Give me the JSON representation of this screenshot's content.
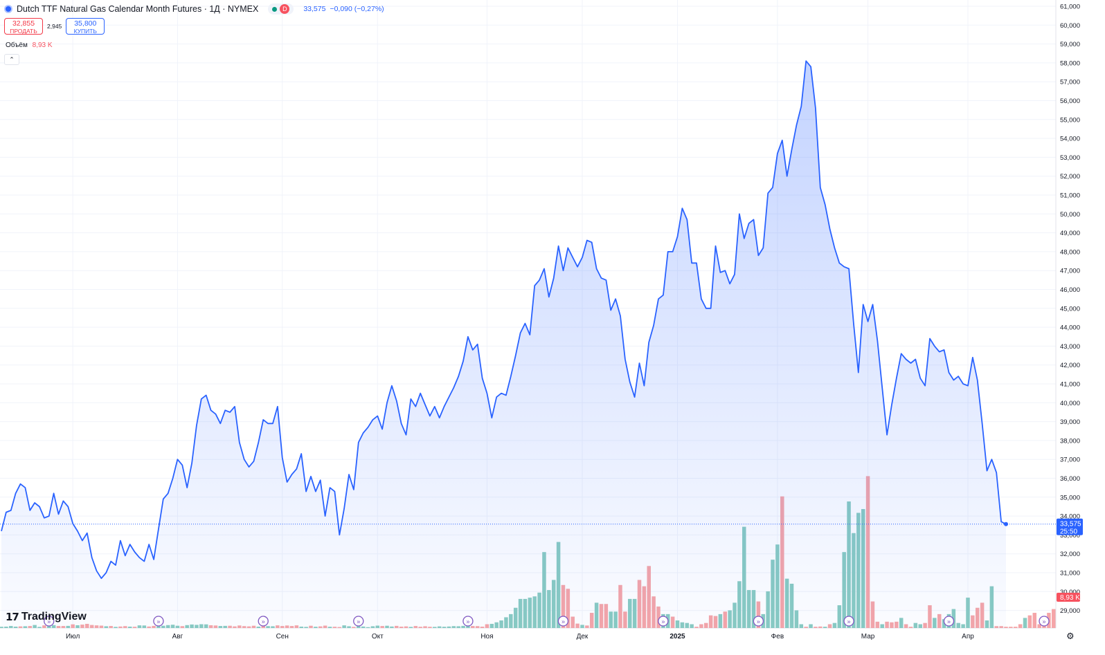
{
  "header": {
    "title": "Dutch TTF Natural Gas Calendar Month Futures · 1Д · NYMEX",
    "market_badge": "D",
    "last": "33,575",
    "change": "−0,090 (−0,27%)"
  },
  "trade": {
    "sell_price": "32,855",
    "sell_label": "ПРОДАТЬ",
    "spread": "2,945",
    "buy_price": "35,800",
    "buy_label": "КУПИТЬ"
  },
  "volume": {
    "label": "Объём",
    "value": "8,93 K"
  },
  "logo_text": "TradingView",
  "price_label": "33,575",
  "countdown": "25:50",
  "volume_label": "8,93 K",
  "colors": {
    "line": "#2962ff",
    "up_volume": "#89cbc2",
    "down_volume": "#f5a5a8",
    "accent": "#2962ff"
  },
  "icons": [
    "symbol-icon",
    "settings-icon",
    "collapse-icon",
    "event-icon"
  ],
  "chart_data": {
    "type": "area",
    "ylim": [
      28500,
      61200
    ],
    "y_ticks": [
      "29,000",
      "30,000",
      "31,000",
      "32,000",
      "33,000",
      "34,000",
      "35,000",
      "36,000",
      "37,000",
      "38,000",
      "39,000",
      "40,000",
      "41,000",
      "42,000",
      "43,000",
      "44,000",
      "45,000",
      "46,000",
      "47,000",
      "48,000",
      "49,000",
      "50,000",
      "51,000",
      "52,000",
      "53,000",
      "54,000",
      "55,000",
      "56,000",
      "57,000",
      "58,000",
      "59,000",
      "60,000",
      "61,000"
    ],
    "x_ticks": [
      {
        "label": "Июл",
        "i": 15
      },
      {
        "label": "Авг",
        "i": 37
      },
      {
        "label": "Сен",
        "i": 59
      },
      {
        "label": "Окт",
        "i": 79
      },
      {
        "label": "Ноя",
        "i": 102
      },
      {
        "label": "Дек",
        "i": 122
      },
      {
        "label": "2025",
        "i": 142
      },
      {
        "label": "Фев",
        "i": 163
      },
      {
        "label": "Мар",
        "i": 182
      },
      {
        "label": "Апр",
        "i": 203
      }
    ],
    "events_i": [
      10,
      33,
      55,
      75,
      98,
      118,
      139,
      159,
      178,
      199,
      219
    ],
    "series": [
      {
        "values": [
          33200,
          34200,
          34300,
          35200,
          35700,
          35500,
          34300,
          34700,
          34500,
          33900,
          34000,
          35200,
          34100,
          34800,
          34500,
          33600,
          33200,
          32700,
          33100,
          31800,
          31100,
          30700,
          31000,
          31600,
          31400,
          32700,
          31900,
          32500,
          32100,
          31800,
          31600,
          32500,
          31700,
          33300,
          34900,
          35200,
          36000,
          37000,
          36700,
          35500,
          36800,
          38800,
          40200,
          40400,
          39600,
          39400,
          38900,
          39600,
          39500,
          39800,
          37900,
          37000,
          36600,
          36900,
          37900,
          39100,
          38900,
          38900,
          39800,
          37100,
          35800,
          36200,
          36500,
          37300,
          35300,
          36100,
          35300,
          35900,
          34000,
          35500,
          35300,
          33000,
          34400,
          36200,
          35400,
          37900,
          38400,
          38700,
          39100,
          39300,
          38600,
          40000,
          40900,
          40100,
          38900,
          38300,
          40200,
          39800,
          40500,
          39900,
          39300,
          39800,
          39200,
          39800,
          40300,
          40800,
          41400,
          42200,
          43500,
          42800,
          43100,
          41300,
          40500,
          39200,
          40300,
          40500,
          40400,
          41400,
          42500,
          43700,
          44200,
          43600,
          46200,
          46500,
          47100,
          45600,
          46600,
          48300,
          47000,
          48200,
          47700,
          47200,
          47700,
          48600,
          48500,
          47100,
          46600,
          46500,
          44900,
          45500,
          44600,
          42300,
          41100,
          40300,
          42100,
          40900,
          43200,
          44100,
          45500,
          45700,
          48000,
          48000,
          48800,
          50300,
          49700,
          47400,
          47400,
          45500,
          45000,
          45000,
          48300,
          46900,
          47000,
          46300,
          46800,
          50000,
          48700,
          49500,
          49700,
          47800,
          48200,
          51100,
          51400,
          53200,
          53900,
          52000,
          53400,
          54700,
          55700,
          58100,
          57800,
          55600,
          51400,
          50500,
          49200,
          48200,
          47400,
          47200,
          47100,
          44200,
          41600,
          45200,
          44300,
          45200,
          43300,
          40800,
          38300,
          39900,
          41300,
          42600,
          42300,
          42100,
          42300,
          41300,
          40900,
          43400,
          43000,
          42700,
          42800,
          41600,
          41200,
          41400,
          41000,
          40900,
          42400,
          41200,
          38900,
          36400,
          37000,
          36300,
          33700,
          33575
        ]
      }
    ],
    "volume": [
      {
        "v": 0.1,
        "u": true
      },
      {
        "v": 0.11,
        "u": true
      },
      {
        "v": 0.16,
        "u": true
      },
      {
        "v": 0.11,
        "u": true
      },
      {
        "v": 0.13,
        "u": false
      },
      {
        "v": 0.14,
        "u": true
      },
      {
        "v": 0.16,
        "u": false
      },
      {
        "v": 0.24,
        "u": true
      },
      {
        "v": 0.09,
        "u": true
      },
      {
        "v": 0.21,
        "u": false
      },
      {
        "v": 0.16,
        "u": true
      },
      {
        "v": 0.23,
        "u": true
      },
      {
        "v": 0.16,
        "u": false
      },
      {
        "v": 0.16,
        "u": false
      },
      {
        "v": 0.17,
        "u": true
      },
      {
        "v": 0.29,
        "u": false
      },
      {
        "v": 0.22,
        "u": true
      },
      {
        "v": 0.27,
        "u": false
      },
      {
        "v": 0.33,
        "u": false
      },
      {
        "v": 0.24,
        "u": false
      },
      {
        "v": 0.21,
        "u": false
      },
      {
        "v": 0.19,
        "u": false
      },
      {
        "v": 0.14,
        "u": true
      },
      {
        "v": 0.16,
        "u": false
      },
      {
        "v": 0.09,
        "u": true
      },
      {
        "v": 0.12,
        "u": false
      },
      {
        "v": 0.15,
        "u": false
      },
      {
        "v": 0.11,
        "u": true
      },
      {
        "v": 0.1,
        "u": false
      },
      {
        "v": 0.21,
        "u": true
      },
      {
        "v": 0.2,
        "u": true
      },
      {
        "v": 0.12,
        "u": false
      },
      {
        "v": 0.17,
        "u": false
      },
      {
        "v": 0.15,
        "u": true
      },
      {
        "v": 0.18,
        "u": true
      },
      {
        "v": 0.23,
        "u": true
      },
      {
        "v": 0.26,
        "u": true
      },
      {
        "v": 0.18,
        "u": true
      },
      {
        "v": 0.15,
        "u": false
      },
      {
        "v": 0.23,
        "u": true
      },
      {
        "v": 0.28,
        "u": true
      },
      {
        "v": 0.25,
        "u": true
      },
      {
        "v": 0.3,
        "u": true
      },
      {
        "v": 0.29,
        "u": true
      },
      {
        "v": 0.22,
        "u": false
      },
      {
        "v": 0.2,
        "u": false
      },
      {
        "v": 0.16,
        "u": true
      },
      {
        "v": 0.17,
        "u": true
      },
      {
        "v": 0.18,
        "u": false
      },
      {
        "v": 0.13,
        "u": false
      },
      {
        "v": 0.2,
        "u": false
      },
      {
        "v": 0.15,
        "u": false
      },
      {
        "v": 0.13,
        "u": false
      },
      {
        "v": 0.18,
        "u": false
      },
      {
        "v": 0.11,
        "u": true
      },
      {
        "v": 0.17,
        "u": false
      },
      {
        "v": 0.15,
        "u": true
      },
      {
        "v": 0.14,
        "u": true
      },
      {
        "v": 0.21,
        "u": false
      },
      {
        "v": 0.16,
        "u": false
      },
      {
        "v": 0.2,
        "u": false
      },
      {
        "v": 0.16,
        "u": false
      },
      {
        "v": 0.21,
        "u": false
      },
      {
        "v": 0.11,
        "u": true
      },
      {
        "v": 0.09,
        "u": true
      },
      {
        "v": 0.18,
        "u": false
      },
      {
        "v": 0.1,
        "u": true
      },
      {
        "v": 0.13,
        "u": false
      },
      {
        "v": 0.19,
        "u": false
      },
      {
        "v": 0.1,
        "u": true
      },
      {
        "v": 0.1,
        "u": false
      },
      {
        "v": 0.08,
        "u": false
      },
      {
        "v": 0.21,
        "u": true
      },
      {
        "v": 0.14,
        "u": true
      },
      {
        "v": 0.09,
        "u": false
      },
      {
        "v": 0.15,
        "u": true
      },
      {
        "v": 0.12,
        "u": true
      },
      {
        "v": 0.07,
        "u": true
      },
      {
        "v": 0.14,
        "u": true
      },
      {
        "v": 0.19,
        "u": true
      },
      {
        "v": 0.16,
        "u": false
      },
      {
        "v": 0.18,
        "u": true
      },
      {
        "v": 0.12,
        "u": true
      },
      {
        "v": 0.17,
        "u": false
      },
      {
        "v": 0.11,
        "u": false
      },
      {
        "v": 0.13,
        "u": false
      },
      {
        "v": 0.09,
        "u": true
      },
      {
        "v": 0.16,
        "u": false
      },
      {
        "v": 0.1,
        "u": false
      },
      {
        "v": 0.14,
        "u": false
      },
      {
        "v": 0.1,
        "u": false
      },
      {
        "v": 0.09,
        "u": true
      },
      {
        "v": 0.13,
        "u": true
      },
      {
        "v": 0.1,
        "u": true
      },
      {
        "v": 0.12,
        "u": true
      },
      {
        "v": 0.15,
        "u": true
      },
      {
        "v": 0.14,
        "u": true
      },
      {
        "v": 0.17,
        "u": true
      },
      {
        "v": 0.21,
        "u": true
      },
      {
        "v": 0.16,
        "u": false
      },
      {
        "v": 0.15,
        "u": false
      },
      {
        "v": 0.11,
        "u": false
      },
      {
        "v": 0.3,
        "u": false
      },
      {
        "v": 0.33,
        "u": true
      },
      {
        "v": 0.45,
        "u": true
      },
      {
        "v": 0.6,
        "u": true
      },
      {
        "v": 0.85,
        "u": true
      },
      {
        "v": 1.1,
        "u": true
      },
      {
        "v": 1.6,
        "u": true
      },
      {
        "v": 2.3,
        "u": true
      },
      {
        "v": 2.3,
        "u": true
      },
      {
        "v": 2.4,
        "u": true
      },
      {
        "v": 2.5,
        "u": true
      },
      {
        "v": 2.8,
        "u": true
      },
      {
        "v": 6.0,
        "u": true
      },
      {
        "v": 3.0,
        "u": true
      },
      {
        "v": 3.8,
        "u": true
      },
      {
        "v": 6.8,
        "u": true
      },
      {
        "v": 3.4,
        "u": false
      },
      {
        "v": 3.1,
        "u": false
      },
      {
        "v": 0.9,
        "u": false
      },
      {
        "v": 0.35,
        "u": false
      },
      {
        "v": 0.25,
        "u": true
      },
      {
        "v": 0.2,
        "u": false
      },
      {
        "v": 1.2,
        "u": false
      },
      {
        "v": 2.0,
        "u": true
      },
      {
        "v": 1.9,
        "u": false
      },
      {
        "v": 1.9,
        "u": false
      },
      {
        "v": 1.3,
        "u": true
      },
      {
        "v": 1.3,
        "u": true
      },
      {
        "v": 3.4,
        "u": false
      },
      {
        "v": 1.3,
        "u": false
      },
      {
        "v": 2.3,
        "u": true
      },
      {
        "v": 2.3,
        "u": true
      },
      {
        "v": 3.8,
        "u": false
      },
      {
        "v": 3.3,
        "u": false
      },
      {
        "v": 4.9,
        "u": false
      },
      {
        "v": 2.5,
        "u": false
      },
      {
        "v": 1.7,
        "u": false
      },
      {
        "v": 1.1,
        "u": true
      },
      {
        "v": 1.1,
        "u": true
      },
      {
        "v": 0.9,
        "u": false
      },
      {
        "v": 0.6,
        "u": true
      },
      {
        "v": 0.45,
        "u": true
      },
      {
        "v": 0.4,
        "u": true
      },
      {
        "v": 0.3,
        "u": true
      },
      {
        "v": 0.1,
        "u": false
      },
      {
        "v": 0.3,
        "u": false
      },
      {
        "v": 0.4,
        "u": false
      },
      {
        "v": 1.0,
        "u": false
      },
      {
        "v": 0.95,
        "u": false
      },
      {
        "v": 1.1,
        "u": true
      },
      {
        "v": 1.3,
        "u": false
      },
      {
        "v": 1.4,
        "u": true
      },
      {
        "v": 2.0,
        "u": true
      },
      {
        "v": 3.7,
        "u": true
      },
      {
        "v": 8.0,
        "u": true
      },
      {
        "v": 3.0,
        "u": true
      },
      {
        "v": 3.0,
        "u": true
      },
      {
        "v": 2.1,
        "u": false
      },
      {
        "v": 1.1,
        "u": true
      },
      {
        "v": 2.9,
        "u": true
      },
      {
        "v": 5.4,
        "u": true
      },
      {
        "v": 6.6,
        "u": true
      },
      {
        "v": 10.4,
        "u": false
      },
      {
        "v": 3.9,
        "u": true
      },
      {
        "v": 3.5,
        "u": true
      },
      {
        "v": 1.4,
        "u": true
      },
      {
        "v": 0.3,
        "u": true
      },
      {
        "v": 0.1,
        "u": false
      },
      {
        "v": 0.3,
        "u": true
      },
      {
        "v": 0.1,
        "u": false
      },
      {
        "v": 0.12,
        "u": false
      },
      {
        "v": 0.1,
        "u": true
      },
      {
        "v": 0.3,
        "u": false
      },
      {
        "v": 0.4,
        "u": true
      },
      {
        "v": 1.8,
        "u": true
      },
      {
        "v": 6.0,
        "u": true
      },
      {
        "v": 10.0,
        "u": true
      },
      {
        "v": 7.5,
        "u": true
      },
      {
        "v": 9.1,
        "u": true
      },
      {
        "v": 9.4,
        "u": true
      },
      {
        "v": 12.0,
        "u": false
      },
      {
        "v": 2.1,
        "u": false
      },
      {
        "v": 0.5,
        "u": false
      },
      {
        "v": 0.3,
        "u": true
      },
      {
        "v": 0.5,
        "u": false
      },
      {
        "v": 0.45,
        "u": false
      },
      {
        "v": 0.5,
        "u": false
      },
      {
        "v": 0.8,
        "u": true
      },
      {
        "v": 0.3,
        "u": false
      },
      {
        "v": 0.1,
        "u": false
      },
      {
        "v": 0.4,
        "u": true
      },
      {
        "v": 0.3,
        "u": true
      },
      {
        "v": 0.4,
        "u": false
      },
      {
        "v": 1.8,
        "u": false
      },
      {
        "v": 0.8,
        "u": true
      },
      {
        "v": 1.1,
        "u": false
      },
      {
        "v": 0.7,
        "u": true
      },
      {
        "v": 1.1,
        "u": true
      },
      {
        "v": 1.5,
        "u": true
      },
      {
        "v": 0.4,
        "u": true
      },
      {
        "v": 0.3,
        "u": true
      },
      {
        "v": 2.4,
        "u": true
      },
      {
        "v": 1.0,
        "u": false
      },
      {
        "v": 1.6,
        "u": false
      },
      {
        "v": 2.0,
        "u": false
      },
      {
        "v": 0.6,
        "u": true
      },
      {
        "v": 3.3,
        "u": true
      },
      {
        "v": 0.15,
        "u": false
      },
      {
        "v": 0.15,
        "u": false
      },
      {
        "v": 0.1,
        "u": false
      },
      {
        "v": 0.1,
        "u": false
      },
      {
        "v": 0.1,
        "u": false
      },
      {
        "v": 0.3,
        "u": false
      },
      {
        "v": 0.8,
        "u": true
      },
      {
        "v": 1.0,
        "u": false
      },
      {
        "v": 1.2,
        "u": false
      },
      {
        "v": 0.3,
        "u": false
      },
      {
        "v": 0.2,
        "u": false
      },
      {
        "v": 1.2,
        "u": false
      },
      {
        "v": 1.5,
        "u": false
      }
    ]
  }
}
